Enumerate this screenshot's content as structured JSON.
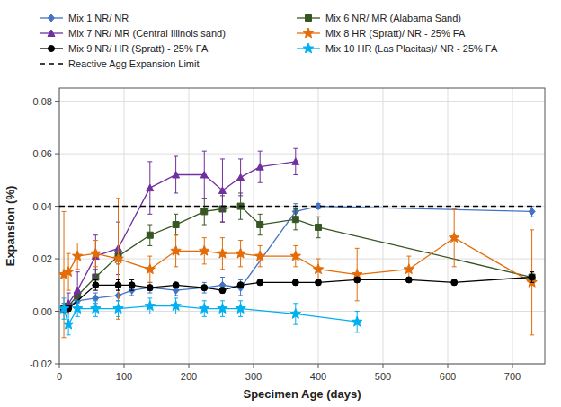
{
  "chart_data": {
    "type": "line",
    "x_label": "Specimen Age (days)",
    "y_label": "Expansion (%)",
    "xlim": [
      0,
      750
    ],
    "ylim": [
      -0.02,
      0.085
    ],
    "xticks": [
      0,
      100,
      200,
      300,
      400,
      500,
      600,
      700
    ],
    "yticks": [
      {
        "value": -0.02,
        "label": "-0.02"
      },
      {
        "value": 0.0,
        "label": "0.00"
      },
      0.02,
      0.04,
      0.06,
      0.08
    ],
    "grid": true,
    "legend": "top",
    "series": [
      {
        "name": "Mix 1 NR/ NR",
        "color": "#4472C4",
        "marker": "diamond",
        "x": [
          7,
          14,
          28,
          56,
          91,
          112,
          140,
          180,
          224,
          252,
          280,
          365,
          400,
          730
        ],
        "values": [
          0.001,
          0.002,
          0.004,
          0.005,
          0.006,
          0.008,
          0.009,
          0.008,
          0.009,
          0.01,
          0.009,
          0.038,
          0.04,
          0.038
        ],
        "errors": [
          0.001,
          0.001,
          0.001,
          0.002,
          0.002,
          0.002,
          0.002,
          0.002,
          0.002,
          0.003,
          0.003,
          0.003,
          0.001,
          0.002
        ]
      },
      {
        "name": "Mix 6 NR/ MR (Alabama Sand)",
        "color": "#375623",
        "marker": "square",
        "x": [
          7,
          14,
          28,
          56,
          91,
          140,
          180,
          224,
          252,
          280,
          310,
          365,
          400,
          730
        ],
        "values": [
          0.001,
          0.002,
          0.006,
          0.013,
          0.021,
          0.029,
          0.033,
          0.038,
          0.039,
          0.04,
          0.033,
          0.035,
          0.032,
          0.013
        ],
        "errors": [
          0.001,
          0.001,
          0.002,
          0.003,
          0.003,
          0.004,
          0.004,
          0.005,
          0.005,
          0.005,
          0.004,
          0.004,
          0.004,
          0.002
        ]
      },
      {
        "name": "Mix 7 NR/ MR (Central Illinois sand)",
        "color": "#7030A0",
        "marker": "triangle",
        "x": [
          7,
          14,
          28,
          56,
          91,
          140,
          180,
          224,
          252,
          280,
          310,
          365
        ],
        "values": [
          0.001,
          0.003,
          0.008,
          0.021,
          0.024,
          0.047,
          0.052,
          0.052,
          0.046,
          0.051,
          0.055,
          0.057
        ],
        "errors": [
          0.002,
          0.004,
          0.007,
          0.008,
          0.01,
          0.01,
          0.007,
          0.009,
          0.012,
          0.007,
          0.006,
          0.005
        ]
      },
      {
        "name": "Mix 8 HR (Spratt)/ NR - 25% FA",
        "color": "#E36C09",
        "marker": "star",
        "x": [
          7,
          14,
          28,
          56,
          91,
          140,
          180,
          224,
          252,
          280,
          310,
          365,
          400,
          460,
          540,
          610,
          730
        ],
        "values": [
          0.014,
          0.015,
          0.021,
          0.022,
          0.02,
          0.016,
          0.023,
          0.023,
          0.022,
          0.022,
          0.021,
          0.021,
          0.016,
          0.014,
          0.016,
          0.028,
          0.011
        ],
        "errors": [
          0.024,
          0.007,
          0.005,
          0.005,
          0.023,
          0.005,
          0.006,
          0.005,
          0.006,
          0.005,
          0.004,
          0.004,
          0.004,
          0.01,
          0.005,
          0.011,
          0.02
        ]
      },
      {
        "name": "Mix 9 NR/ HR (Spratt) - 25% FA",
        "color": "#000000",
        "marker": "circle",
        "x": [
          7,
          14,
          56,
          91,
          112,
          140,
          180,
          224,
          252,
          280,
          310,
          365,
          400,
          460,
          540,
          610,
          730
        ],
        "values": [
          0.001,
          0.001,
          0.01,
          0.01,
          0.01,
          0.009,
          0.01,
          0.009,
          0.008,
          0.01,
          0.011,
          0.011,
          0.011,
          0.012,
          0.012,
          0.011,
          0.013
        ],
        "errors": [
          0.001,
          0.001,
          0.002,
          0.002,
          0.002,
          0.001,
          0.001,
          0.001,
          0.001,
          0.001,
          0.001,
          0.001,
          0.001,
          0.001,
          0.001,
          0.001,
          0.002
        ]
      },
      {
        "name": "Mix 10 HR (Las Placitas)/ NR - 25% FA",
        "color": "#00B0F0",
        "marker": "star",
        "x": [
          7,
          14,
          28,
          56,
          91,
          140,
          180,
          224,
          252,
          280,
          365,
          460
        ],
        "values": [
          0.001,
          -0.005,
          0.001,
          0.001,
          0.001,
          0.002,
          0.002,
          0.001,
          0.001,
          0.001,
          -0.001,
          -0.004
        ],
        "errors": [
          0.004,
          0.004,
          0.003,
          0.003,
          0.003,
          0.003,
          0.003,
          0.003,
          0.003,
          0.003,
          0.004,
          0.004
        ]
      },
      {
        "name": "Reactive Agg Expansion Limit",
        "type": "hline",
        "color": "#000000",
        "line_style": "dashed",
        "values": [
          0.04
        ]
      }
    ]
  }
}
